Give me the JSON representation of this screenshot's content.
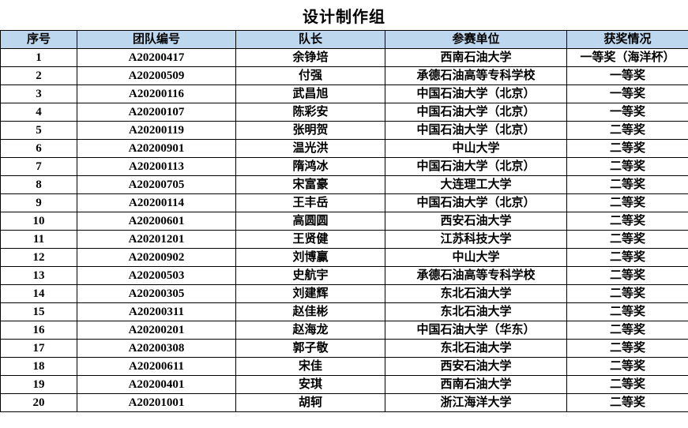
{
  "title": "设计制作组",
  "colors": {
    "header_bg": "#BDD7EE",
    "border": "#000000",
    "text": "#000000",
    "background": "#FFFFFF"
  },
  "table": {
    "columns": [
      "序号",
      "团队编号",
      "队长",
      "参赛单位",
      "获奖情况"
    ],
    "column_keys": [
      "row-index",
      "team-id",
      "captain",
      "unit",
      "award"
    ],
    "rows": [
      [
        "1",
        "A20200417",
        "余铮培",
        "西南石油大学",
        "一等奖（海洋杯）"
      ],
      [
        "2",
        "A20200509",
        "付强",
        "承德石油高等专科学校",
        "一等奖"
      ],
      [
        "3",
        "A20200116",
        "武昌旭",
        "中国石油大学（北京）",
        "一等奖"
      ],
      [
        "4",
        "A20200107",
        "陈彩安",
        "中国石油大学（北京）",
        "一等奖"
      ],
      [
        "5",
        "A20200119",
        "张明贺",
        "中国石油大学（北京）",
        "二等奖"
      ],
      [
        "6",
        "A20200901",
        "温光洪",
        "中山大学",
        "二等奖"
      ],
      [
        "7",
        "A20200113",
        "隋鸿冰",
        "中国石油大学（北京）",
        "二等奖"
      ],
      [
        "8",
        "A20200705",
        "宋富豪",
        "大连理工大学",
        "二等奖"
      ],
      [
        "9",
        "A20200114",
        "王丰岳",
        "中国石油大学（北京）",
        "二等奖"
      ],
      [
        "10",
        "A20200601",
        "高圆圆",
        "西安石油大学",
        "二等奖"
      ],
      [
        "11",
        "A20201201",
        "王贤健",
        "江苏科技大学",
        "二等奖"
      ],
      [
        "12",
        "A20200902",
        "刘博赢",
        "中山大学",
        "二等奖"
      ],
      [
        "13",
        "A20200503",
        "史航宇",
        "承德石油高等专科学校",
        "二等奖"
      ],
      [
        "14",
        "A20200305",
        "刘建辉",
        "东北石油大学",
        "二等奖"
      ],
      [
        "15",
        "A20200311",
        "赵佳彬",
        "东北石油大学",
        "二等奖"
      ],
      [
        "16",
        "A20200201",
        "赵海龙",
        "中国石油大学（华东）",
        "二等奖"
      ],
      [
        "17",
        "A20200308",
        "郭子敬",
        "东北石油大学",
        "二等奖"
      ],
      [
        "18",
        "A20200611",
        "宋佳",
        "西安石油大学",
        "二等奖"
      ],
      [
        "19",
        "A20200401",
        "安琪",
        "西南石油大学",
        "二等奖"
      ],
      [
        "20",
        "A20201001",
        "胡轲",
        "浙江海洋大学",
        "二等奖"
      ]
    ]
  }
}
